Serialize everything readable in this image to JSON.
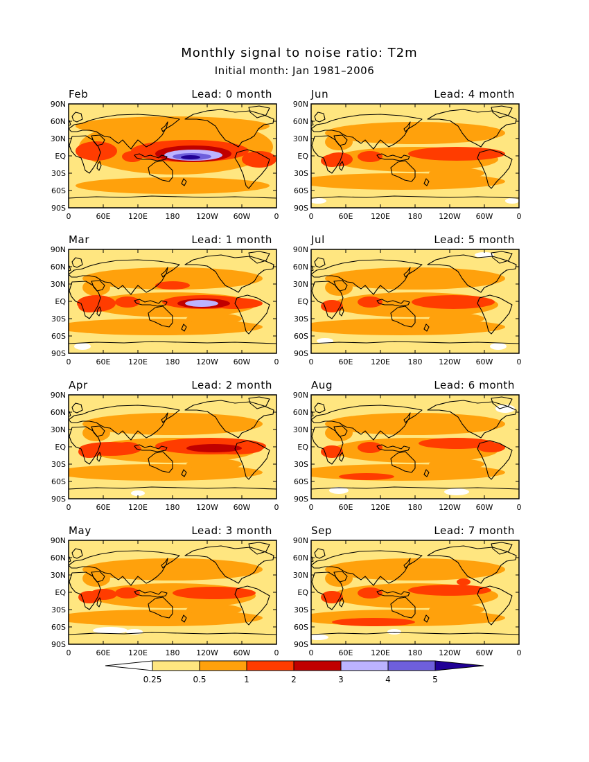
{
  "figure": {
    "title": "Monthly signal to noise ratio: T2m",
    "subtitle": "Initial month: Jan 1981–2006"
  },
  "axes": {
    "lat_labels": [
      "90N",
      "60N",
      "30N",
      "EQ",
      "30S",
      "60S",
      "90S"
    ],
    "lon_labels": [
      "0",
      "60E",
      "120E",
      "180",
      "120W",
      "60W",
      "0"
    ]
  },
  "panels": [
    {
      "month": "Feb",
      "lead": "Lead: 0 month"
    },
    {
      "month": "Jun",
      "lead": "Lead: 4 month"
    },
    {
      "month": "Mar",
      "lead": "Lead: 1 month"
    },
    {
      "month": "Jul",
      "lead": "Lead: 5 month"
    },
    {
      "month": "Apr",
      "lead": "Lead: 2 month"
    },
    {
      "month": "Aug",
      "lead": "Lead: 6 month"
    },
    {
      "month": "May",
      "lead": "Lead: 3 month"
    },
    {
      "month": "Sep",
      "lead": "Lead: 7 month"
    }
  ],
  "colorbar": {
    "labels": [
      "0.25",
      "0.5",
      "1",
      "2",
      "3",
      "4",
      "5"
    ],
    "colors": [
      "#ffffff",
      "#ffe680",
      "#ffa10c",
      "#ff3c00",
      "#c00000",
      "#bcb3ff",
      "#6e5fdc",
      "#200096"
    ]
  }
}
